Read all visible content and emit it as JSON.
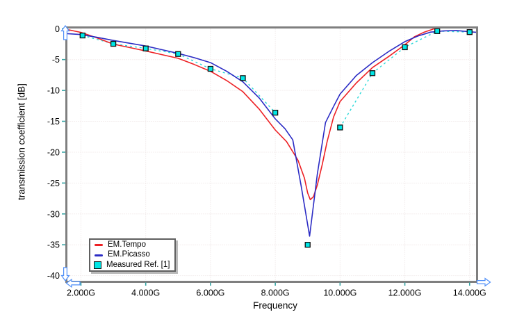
{
  "chart_data": {
    "type": "line",
    "title": "",
    "xlabel": "Frequency",
    "ylabel": "transmission coefficient [dB]",
    "x_unit": "Hz",
    "xlim": [
      1.55,
      14.23
    ],
    "ylim": [
      -41.0,
      0.2
    ],
    "grid": true,
    "legend_position": "bottom-left",
    "x_ticks": {
      "values": [
        2,
        4,
        6,
        8,
        10,
        12,
        14
      ],
      "labels": [
        "2.000G",
        "4.000G",
        "6.000G",
        "8.000G",
        "10.000G",
        "12.000G",
        "14.000G"
      ]
    },
    "y_ticks": {
      "values": [
        0,
        -5,
        -10,
        -15,
        -20,
        -25,
        -30,
        -35,
        -40
      ],
      "labels": [
        "0",
        "-5",
        "-10",
        "-15",
        "-20",
        "-25",
        "-30",
        "-35",
        "-40"
      ]
    },
    "series": [
      {
        "name": "EM.Tempo",
        "type": "line",
        "color": "#ed2024",
        "x": [
          1.55,
          2.0,
          2.5,
          3.0,
          3.5,
          4.0,
          4.5,
          5.0,
          5.5,
          6.0,
          6.5,
          7.0,
          7.5,
          8.0,
          8.35,
          8.7,
          8.9,
          9.0,
          9.08,
          9.18,
          9.3,
          9.45,
          9.6,
          9.8,
          10.0,
          10.5,
          11.0,
          11.5,
          12.0,
          12.3,
          12.6,
          12.85,
          13.0
        ],
        "y": [
          -0.1,
          -0.6,
          -1.5,
          -2.5,
          -3.05,
          -3.6,
          -4.2,
          -4.8,
          -5.8,
          -6.9,
          -8.4,
          -10.2,
          -13.0,
          -16.4,
          -18.3,
          -21.3,
          -24.2,
          -26.6,
          -27.7,
          -27.2,
          -25.3,
          -22.0,
          -18.3,
          -14.3,
          -11.8,
          -8.8,
          -6.3,
          -4.5,
          -2.6,
          -1.3,
          -0.55,
          -0.1,
          0.2
        ]
      },
      {
        "name": "EM.Picasso",
        "type": "line",
        "color": "#2b2bc4",
        "x": [
          1.57,
          2.0,
          2.5,
          3.0,
          3.5,
          4.0,
          4.5,
          5.0,
          5.5,
          6.0,
          6.5,
          7.0,
          7.5,
          8.0,
          8.3,
          8.54,
          8.8,
          9.06,
          9.3,
          9.55,
          9.8,
          10.0,
          10.5,
          11.0,
          11.5,
          12.0,
          12.4,
          12.8,
          13.2,
          13.6,
          14.0,
          14.23
        ],
        "y": [
          -0.8,
          -0.95,
          -1.4,
          -1.9,
          -2.35,
          -2.8,
          -3.4,
          -4.0,
          -4.7,
          -5.5,
          -6.9,
          -8.6,
          -11.2,
          -14.6,
          -16.2,
          -18.0,
          -25.5,
          -33.6,
          -23.5,
          -15.2,
          -12.6,
          -10.6,
          -7.6,
          -5.5,
          -3.7,
          -2.1,
          -1.2,
          -0.55,
          -0.35,
          -0.3,
          -0.5,
          -0.6
        ]
      },
      {
        "name": "Measured Ref. [1]",
        "type": "scatter-dashed-line",
        "marker": "square",
        "marker_fill": "#00e6e6",
        "marker_edge": "#101010",
        "line_color": "#2bd9d9",
        "x": [
          2.05,
          3,
          4,
          5,
          6,
          7,
          8,
          9,
          10,
          11,
          12,
          13,
          14
        ],
        "y": [
          -1.1,
          -2.45,
          -3.2,
          -4.1,
          -6.5,
          -8.0,
          -13.6,
          -35.0,
          -16.0,
          -7.2,
          -3.0,
          -0.4,
          -0.55
        ],
        "line_parts": [
          {
            "x": [
              2.05,
              3,
              4,
              5,
              6,
              7,
              8
            ],
            "y": [
              -1.1,
              -2.45,
              -3.2,
              -4.1,
              -6.5,
              -8.0,
              -13.6
            ]
          },
          {
            "x": [
              10,
              11,
              12,
              13,
              14
            ],
            "y": [
              -16.0,
              -7.2,
              -3.0,
              -0.4,
              -0.55
            ]
          }
        ]
      }
    ],
    "colors": {
      "axis": "#7f7f7f",
      "tick": "#35a4a4",
      "grid": "#e9dede",
      "arrow_outline": "#4e8ef7",
      "arrow_fill": "#ffffff",
      "background": "#ffffff",
      "text": "#000000"
    }
  }
}
